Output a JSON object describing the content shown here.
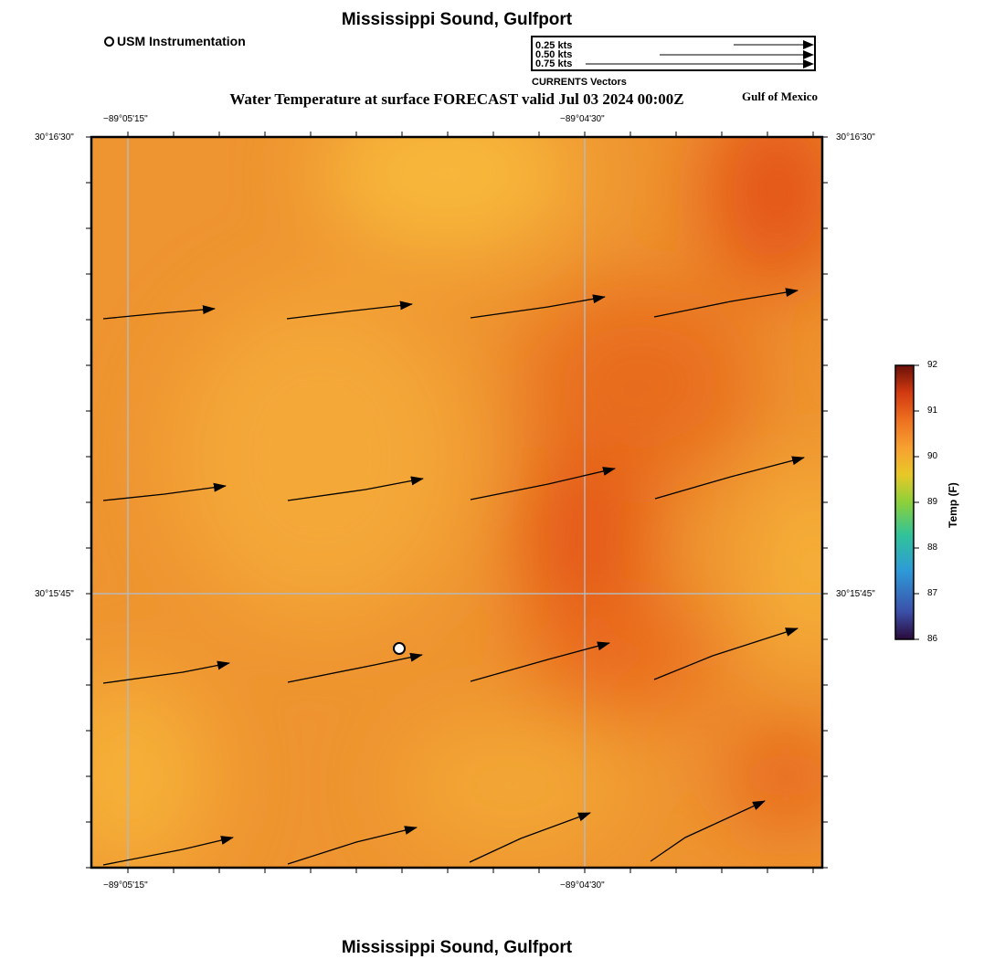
{
  "title_top": "Mississippi Sound, Gulfport",
  "title_bottom": "Mississippi Sound, Gulfport",
  "legend": {
    "station_label": "USM Instrumentation",
    "vector_scale": [
      "0.25 kts",
      "0.50 kts",
      "0.75 kts"
    ],
    "vector_caption": "CURRENTS Vectors"
  },
  "subtitle": "Water Temperature at surface FORECAST valid Jul 03 2024 00:00Z",
  "region_label": "Gulf of Mexico",
  "axes": {
    "lon_labels": [
      "−89°05'15\"",
      "−89°04'30\""
    ],
    "lat_labels": [
      "30°16'30\"",
      "30°15'45\""
    ]
  },
  "colorbar": {
    "title": "Temp (F)",
    "min": 86,
    "max": 92,
    "ticks": [
      "92",
      "91",
      "90",
      "89",
      "88",
      "87",
      "86"
    ]
  },
  "colors": {
    "warm_base": "#ee9430",
    "warm_light": "#f7b438",
    "warm_deep": "#e45410",
    "frame": "#000000",
    "grid": "#b8b8b8"
  }
}
